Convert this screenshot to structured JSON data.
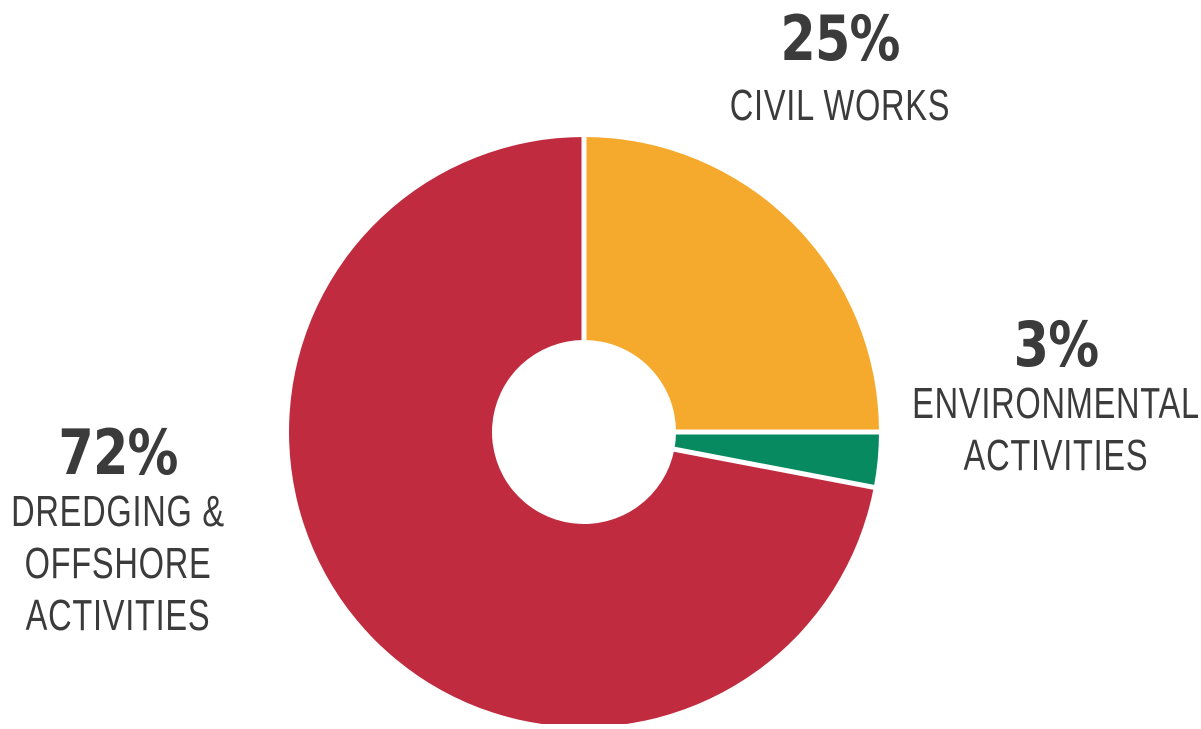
{
  "chart_data": {
    "type": "pie",
    "style": "donut",
    "slices": [
      {
        "value": 25,
        "value_label": "25%",
        "label_lines": [
          "CIVIL WORKS"
        ],
        "color": "#F5AA2D"
      },
      {
        "value": 3,
        "value_label": "3%",
        "label_lines": [
          "ENVIRONMENTAL",
          "ACTIVITIES"
        ],
        "color": "#078A5F"
      },
      {
        "value": 72,
        "value_label": "72%",
        "label_lines": [
          "DREDGING &",
          "OFFSHORE",
          "ACTIVITIES"
        ],
        "color": "#C12B3F"
      }
    ],
    "start_angle_deg": 0,
    "direction": "clockwise",
    "separator_color": "#FFFFFF"
  }
}
